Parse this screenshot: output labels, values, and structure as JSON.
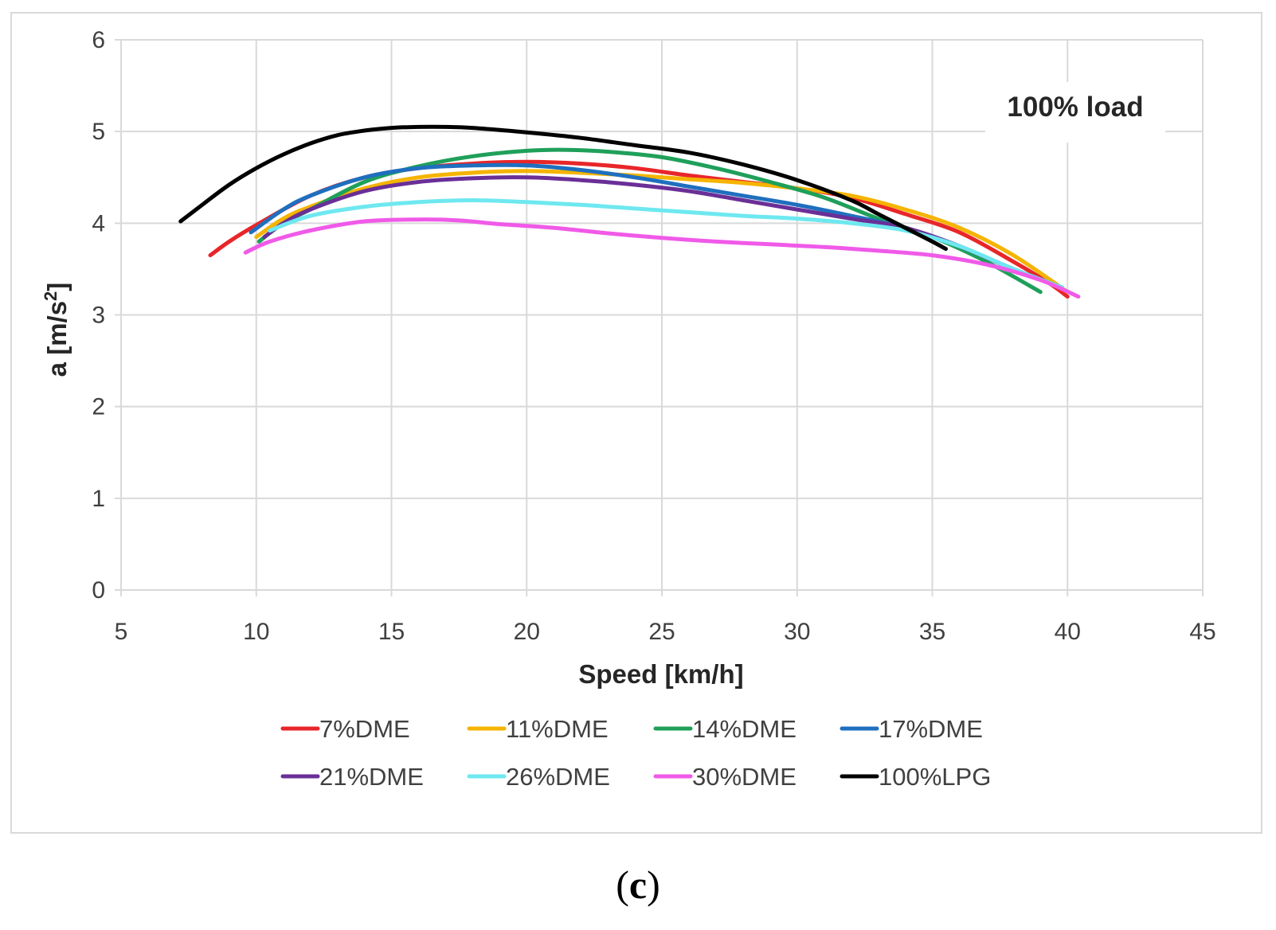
{
  "caption": {
    "open": "(",
    "letter": "c",
    "close": ")"
  },
  "chart_data": {
    "type": "line",
    "title": "",
    "annotation": "100% load",
    "xlabel": "Speed [km/h]",
    "ylabel_main": "a [m/s",
    "ylabel_sup": "2",
    "ylabel_end": "]",
    "xlim": [
      5,
      45
    ],
    "ylim": [
      0,
      6
    ],
    "xticks": [
      5,
      10,
      15,
      20,
      25,
      30,
      35,
      40,
      45
    ],
    "yticks": [
      0,
      1,
      2,
      3,
      4,
      5,
      6
    ],
    "grid": true,
    "legend_position": "bottom",
    "series": [
      {
        "name": "7%DME",
        "color": "#e8262a",
        "points": [
          [
            8.3,
            3.65
          ],
          [
            9,
            3.8
          ],
          [
            10,
            3.98
          ],
          [
            12,
            4.3
          ],
          [
            14,
            4.5
          ],
          [
            16,
            4.6
          ],
          [
            18,
            4.65
          ],
          [
            20,
            4.67
          ],
          [
            22,
            4.65
          ],
          [
            24,
            4.6
          ],
          [
            26,
            4.52
          ],
          [
            28,
            4.45
          ],
          [
            30,
            4.38
          ],
          [
            32,
            4.28
          ],
          [
            34,
            4.1
          ],
          [
            36,
            3.9
          ],
          [
            38,
            3.58
          ],
          [
            39.3,
            3.35
          ],
          [
            40,
            3.2
          ]
        ]
      },
      {
        "name": "11%DME",
        "color": "#f5b400",
        "points": [
          [
            10,
            3.85
          ],
          [
            11,
            4.05
          ],
          [
            12,
            4.18
          ],
          [
            14,
            4.38
          ],
          [
            16,
            4.5
          ],
          [
            18,
            4.55
          ],
          [
            20,
            4.57
          ],
          [
            22,
            4.55
          ],
          [
            24,
            4.52
          ],
          [
            26,
            4.48
          ],
          [
            28,
            4.44
          ],
          [
            30,
            4.38
          ],
          [
            32,
            4.3
          ],
          [
            34,
            4.15
          ],
          [
            36,
            3.95
          ],
          [
            38,
            3.65
          ],
          [
            40,
            3.25
          ]
        ]
      },
      {
        "name": "14%DME",
        "color": "#1fa05a",
        "points": [
          [
            10.1,
            3.8
          ],
          [
            11,
            4.0
          ],
          [
            12,
            4.15
          ],
          [
            14,
            4.45
          ],
          [
            16,
            4.62
          ],
          [
            18,
            4.73
          ],
          [
            20,
            4.79
          ],
          [
            21.5,
            4.8
          ],
          [
            23,
            4.78
          ],
          [
            25,
            4.72
          ],
          [
            27,
            4.6
          ],
          [
            29,
            4.45
          ],
          [
            31,
            4.28
          ],
          [
            33,
            4.05
          ],
          [
            35,
            3.85
          ],
          [
            37,
            3.58
          ],
          [
            39,
            3.25
          ]
        ]
      },
      {
        "name": "17%DME",
        "color": "#1f6fbf",
        "points": [
          [
            9.8,
            3.9
          ],
          [
            11,
            4.15
          ],
          [
            12,
            4.3
          ],
          [
            14,
            4.5
          ],
          [
            16,
            4.6
          ],
          [
            18,
            4.63
          ],
          [
            20,
            4.63
          ],
          [
            22,
            4.58
          ],
          [
            24,
            4.5
          ],
          [
            26,
            4.4
          ],
          [
            28,
            4.3
          ],
          [
            30,
            4.2
          ],
          [
            32,
            4.08
          ],
          [
            34,
            3.95
          ],
          [
            36,
            3.75
          ],
          [
            38,
            3.5
          ],
          [
            39.8,
            3.3
          ]
        ]
      },
      {
        "name": "21%DME",
        "color": "#6a2f97",
        "points": [
          [
            10.3,
            3.85
          ],
          [
            11,
            4.0
          ],
          [
            12,
            4.15
          ],
          [
            14,
            4.35
          ],
          [
            16,
            4.45
          ],
          [
            18,
            4.49
          ],
          [
            20,
            4.5
          ],
          [
            22,
            4.47
          ],
          [
            24,
            4.42
          ],
          [
            26,
            4.35
          ],
          [
            28,
            4.25
          ],
          [
            30,
            4.15
          ],
          [
            32,
            4.05
          ],
          [
            34,
            3.95
          ],
          [
            36,
            3.75
          ],
          [
            38,
            3.5
          ],
          [
            39.8,
            3.3
          ]
        ]
      },
      {
        "name": "26%DME",
        "color": "#6ee8f0",
        "points": [
          [
            10.5,
            3.92
          ],
          [
            12,
            4.08
          ],
          [
            14,
            4.18
          ],
          [
            16,
            4.23
          ],
          [
            18,
            4.25
          ],
          [
            20,
            4.23
          ],
          [
            22,
            4.2
          ],
          [
            24,
            4.16
          ],
          [
            26,
            4.12
          ],
          [
            28,
            4.08
          ],
          [
            30,
            4.05
          ],
          [
            32,
            4.0
          ],
          [
            34,
            3.92
          ],
          [
            36,
            3.75
          ],
          [
            38,
            3.5
          ],
          [
            39.8,
            3.3
          ]
        ]
      },
      {
        "name": "30%DME",
        "color": "#f05ae8",
        "points": [
          [
            9.6,
            3.68
          ],
          [
            10.5,
            3.8
          ],
          [
            12,
            3.92
          ],
          [
            14,
            4.02
          ],
          [
            16,
            4.04
          ],
          [
            17.5,
            4.03
          ],
          [
            19,
            3.99
          ],
          [
            21,
            3.95
          ],
          [
            23,
            3.89
          ],
          [
            25,
            3.84
          ],
          [
            27,
            3.8
          ],
          [
            29,
            3.77
          ],
          [
            31,
            3.74
          ],
          [
            33,
            3.7
          ],
          [
            35,
            3.65
          ],
          [
            37,
            3.55
          ],
          [
            39,
            3.38
          ],
          [
            40.4,
            3.2
          ]
        ]
      },
      {
        "name": "100%LPG",
        "color": "#000000",
        "points": [
          [
            7.2,
            4.02
          ],
          [
            8,
            4.2
          ],
          [
            9,
            4.42
          ],
          [
            10,
            4.6
          ],
          [
            11,
            4.75
          ],
          [
            12,
            4.87
          ],
          [
            13,
            4.96
          ],
          [
            14,
            5.01
          ],
          [
            15,
            5.04
          ],
          [
            16,
            5.05
          ],
          [
            17,
            5.05
          ],
          [
            18,
            5.04
          ],
          [
            20,
            4.99
          ],
          [
            22,
            4.93
          ],
          [
            24,
            4.85
          ],
          [
            26,
            4.77
          ],
          [
            28,
            4.64
          ],
          [
            30,
            4.47
          ],
          [
            32,
            4.25
          ],
          [
            33,
            4.1
          ],
          [
            34,
            3.95
          ],
          [
            35,
            3.8
          ],
          [
            35.5,
            3.72
          ]
        ]
      }
    ]
  }
}
